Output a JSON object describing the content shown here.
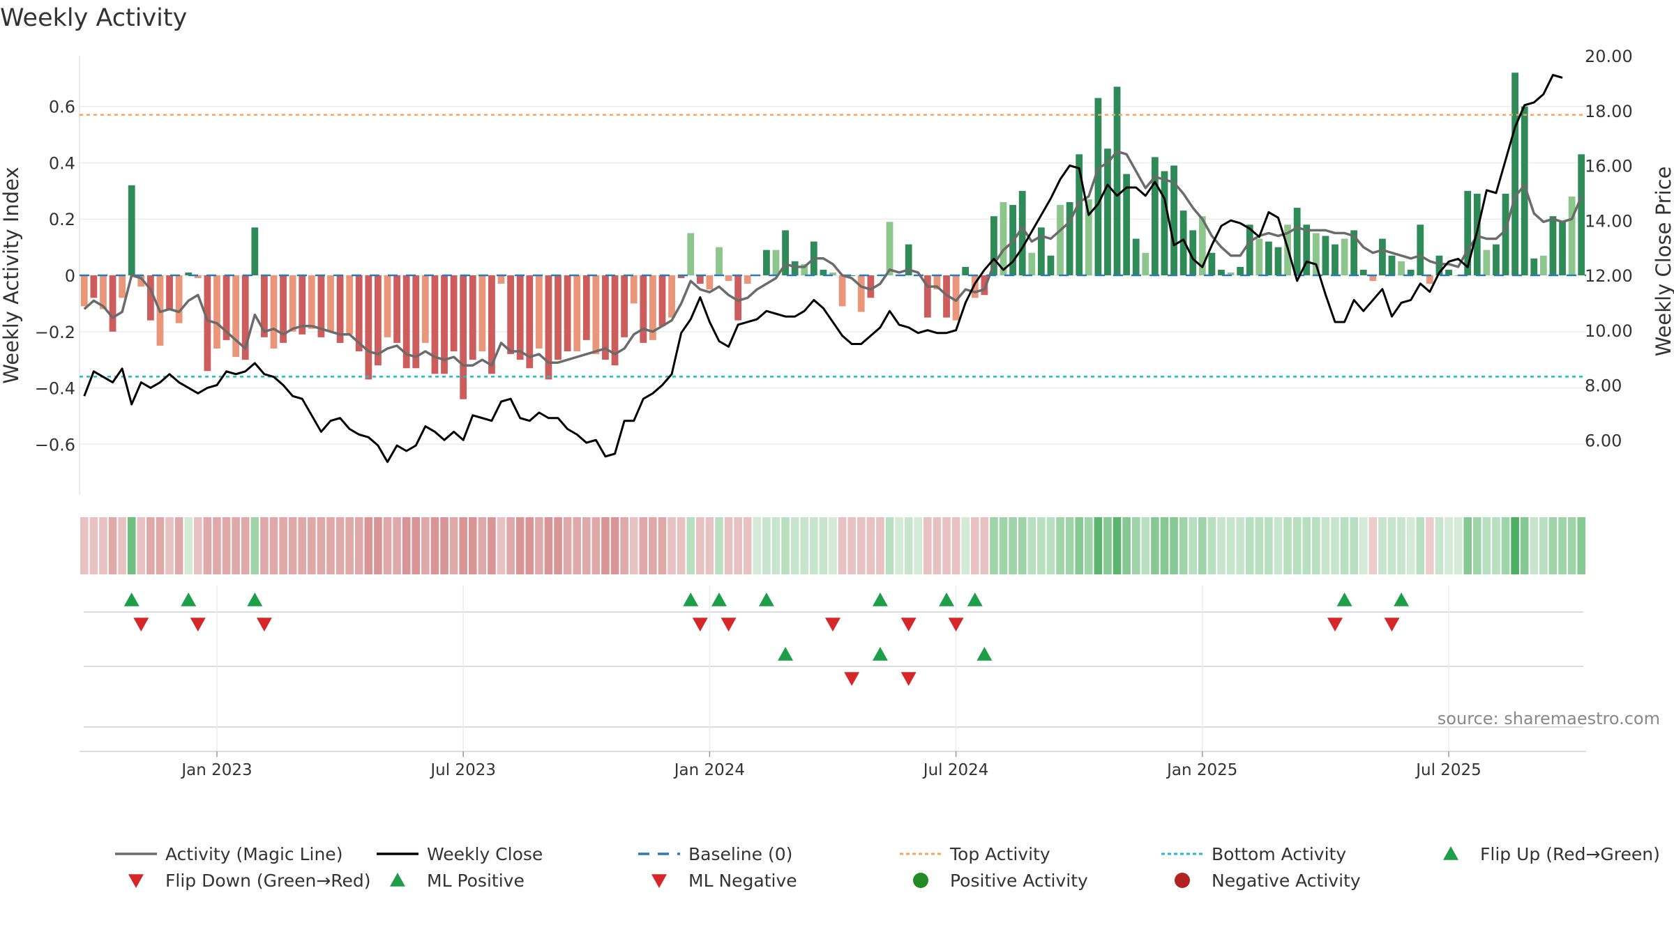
{
  "chart_data": {
    "type": "bar",
    "title": "Weekly Activity",
    "source": "source: sharemaestro.com",
    "ylabel_left": "Weekly Activity Index",
    "ylabel_right": "Weekly Close Price",
    "ylim_left": [
      -0.78,
      0.78
    ],
    "ylim_right": [
      4.0,
      20.0
    ],
    "yticks_left": [
      {
        "v": 0.6,
        "label": "0.6"
      },
      {
        "v": 0.4,
        "label": "0.4"
      },
      {
        "v": 0.2,
        "label": "0.2"
      },
      {
        "v": 0,
        "label": "0"
      },
      {
        "v": -0.2,
        "label": "−0.2"
      },
      {
        "v": -0.4,
        "label": "−0.4"
      },
      {
        "v": -0.6,
        "label": "−0.6"
      }
    ],
    "yticks_right": [
      {
        "v": 20,
        "label": "20.00"
      },
      {
        "v": 18,
        "label": "18.00"
      },
      {
        "v": 16,
        "label": "16.00"
      },
      {
        "v": 14,
        "label": "14.00"
      },
      {
        "v": 12,
        "label": "12.00"
      },
      {
        "v": 10,
        "label": "10.00"
      },
      {
        "v": 8,
        "label": "8.00"
      },
      {
        "v": 6,
        "label": "6.00"
      }
    ],
    "x_ticks": [
      {
        "week": 14.5,
        "label": "Jan 2023"
      },
      {
        "week": 40.5,
        "label": "Jul 2023"
      },
      {
        "week": 66.5,
        "label": "Jan 2024"
      },
      {
        "week": 92.5,
        "label": "Jul 2024"
      },
      {
        "week": 118.5,
        "label": "Jan 2025"
      },
      {
        "week": 144.5,
        "label": "Jul 2025"
      }
    ],
    "top_activity": 0.57,
    "bottom_activity": -0.36,
    "activity": [
      -0.11,
      -0.08,
      -0.12,
      -0.2,
      -0.08,
      0.32,
      -0.04,
      -0.16,
      -0.25,
      -0.12,
      -0.17,
      0.01,
      -0.01,
      -0.34,
      -0.26,
      -0.23,
      -0.29,
      -0.3,
      0.17,
      -0.22,
      -0.26,
      -0.24,
      -0.2,
      -0.21,
      -0.19,
      -0.22,
      -0.2,
      -0.24,
      -0.21,
      -0.27,
      -0.37,
      -0.32,
      -0.22,
      -0.24,
      -0.33,
      -0.33,
      -0.24,
      -0.35,
      -0.35,
      -0.27,
      -0.44,
      -0.3,
      -0.27,
      -0.35,
      -0.03,
      -0.28,
      -0.3,
      -0.33,
      -0.26,
      -0.37,
      -0.3,
      -0.27,
      -0.27,
      -0.23,
      -0.28,
      -0.3,
      -0.32,
      -0.22,
      -0.1,
      -0.24,
      -0.23,
      -0.18,
      -0.15,
      -0.01,
      0.15,
      -0.03,
      -0.05,
      0.1,
      -0.02,
      -0.16,
      -0.03,
      0.0,
      0.09,
      0.09,
      0.16,
      0.05,
      0.04,
      0.12,
      0.02,
      0.01,
      -0.11,
      0.0,
      -0.13,
      -0.08,
      0.0,
      0.19,
      0.0,
      0.11,
      0.0,
      -0.15,
      -0.05,
      -0.15,
      -0.16,
      0.03,
      -0.08,
      -0.07,
      0.21,
      0.26,
      0.25,
      0.3,
      0.08,
      0.17,
      0.07,
      0.25,
      0.26,
      0.43,
      0.27,
      0.63,
      0.45,
      0.67,
      0.36,
      0.13,
      0.08,
      0.42,
      0.37,
      0.39,
      0.23,
      0.16,
      0.21,
      0.08,
      0.02,
      0.01,
      0.03,
      0.18,
      0.13,
      0.12,
      0.1,
      0.18,
      0.24,
      0.18,
      0.15,
      0.14,
      0.11,
      0.13,
      0.16,
      0.02,
      -0.02,
      0.13,
      0.07,
      0.05,
      0.02,
      0.18,
      -0.03,
      0.07,
      0.02,
      0.0,
      0.3,
      0.29,
      0.09,
      0.11,
      0.29,
      0.72,
      0.6,
      0.06,
      0.07,
      0.21,
      0.19,
      0.28,
      0.43
    ],
    "magic_line": [
      -0.12,
      -0.09,
      -0.11,
      -0.15,
      -0.13,
      0.0,
      -0.01,
      -0.05,
      -0.13,
      -0.12,
      -0.13,
      -0.09,
      -0.07,
      -0.16,
      -0.17,
      -0.2,
      -0.23,
      -0.26,
      -0.14,
      -0.2,
      -0.19,
      -0.21,
      -0.19,
      -0.18,
      -0.18,
      -0.19,
      -0.2,
      -0.21,
      -0.21,
      -0.24,
      -0.27,
      -0.28,
      -0.26,
      -0.25,
      -0.28,
      -0.29,
      -0.27,
      -0.29,
      -0.3,
      -0.29,
      -0.32,
      -0.32,
      -0.3,
      -0.32,
      -0.24,
      -0.27,
      -0.27,
      -0.29,
      -0.28,
      -0.31,
      -0.31,
      -0.3,
      -0.29,
      -0.28,
      -0.27,
      -0.26,
      -0.28,
      -0.26,
      -0.21,
      -0.19,
      -0.2,
      -0.18,
      -0.16,
      -0.1,
      -0.02,
      -0.05,
      -0.06,
      -0.04,
      -0.07,
      -0.09,
      -0.08,
      -0.05,
      -0.03,
      -0.01,
      0.04,
      0.03,
      0.03,
      0.06,
      0.06,
      0.04,
      0.0,
      -0.01,
      -0.04,
      -0.05,
      -0.03,
      0.02,
      0.01,
      0.02,
      0.01,
      -0.04,
      -0.04,
      -0.07,
      -0.09,
      -0.05,
      -0.06,
      -0.05,
      0.04,
      0.09,
      0.12,
      0.17,
      0.12,
      0.14,
      0.13,
      0.16,
      0.19,
      0.26,
      0.28,
      0.38,
      0.4,
      0.44,
      0.43,
      0.37,
      0.31,
      0.35,
      0.34,
      0.33,
      0.29,
      0.24,
      0.2,
      0.14,
      0.1,
      0.07,
      0.07,
      0.12,
      0.14,
      0.15,
      0.14,
      0.15,
      0.17,
      0.16,
      0.16,
      0.16,
      0.15,
      0.15,
      0.14,
      0.1,
      0.08,
      0.09,
      0.08,
      0.07,
      0.06,
      0.07,
      0.05,
      0.04,
      0.04,
      0.03,
      0.09,
      0.14,
      0.13,
      0.13,
      0.16,
      0.28,
      0.32,
      0.22,
      0.19,
      0.2,
      0.19,
      0.2,
      0.28
    ],
    "weekly_close": [
      7.6,
      8.5,
      8.3,
      8.1,
      8.6,
      7.3,
      8.1,
      7.9,
      8.1,
      8.4,
      8.1,
      7.9,
      7.7,
      7.9,
      8.0,
      8.5,
      8.4,
      8.5,
      8.8,
      8.4,
      8.3,
      8.0,
      7.6,
      7.5,
      6.9,
      6.3,
      6.7,
      6.8,
      6.4,
      6.2,
      6.1,
      5.8,
      5.2,
      5.8,
      5.6,
      5.8,
      6.5,
      6.3,
      6.0,
      6.3,
      6.0,
      6.9,
      6.8,
      6.7,
      7.4,
      7.5,
      6.8,
      6.7,
      7.0,
      6.8,
      6.8,
      6.4,
      6.2,
      5.9,
      6.0,
      5.4,
      5.5,
      6.7,
      6.7,
      7.5,
      7.7,
      8.0,
      8.4,
      9.9,
      10.4,
      11.2,
      10.3,
      9.6,
      9.4,
      10.2,
      10.3,
      10.4,
      10.7,
      10.6,
      10.5,
      10.5,
      10.7,
      11.1,
      10.8,
      10.3,
      9.8,
      9.5,
      9.5,
      9.8,
      10.1,
      10.7,
      10.2,
      10.1,
      9.9,
      10.0,
      9.9,
      9.9,
      10.0,
      11.0,
      11.7,
      12.2,
      12.6,
      12.2,
      12.5,
      13.0,
      13.6,
      14.2,
      14.8,
      15.5,
      16.0,
      15.9,
      14.2,
      14.6,
      15.3,
      14.9,
      15.2,
      15.2,
      14.9,
      15.4,
      14.8,
      13.1,
      13.3,
      12.6,
      12.3,
      13.1,
      13.8,
      14.0,
      13.9,
      13.7,
      13.4,
      14.3,
      14.1,
      13.0,
      11.8,
      12.5,
      12.4,
      11.3,
      10.3,
      10.3,
      11.1,
      10.7,
      11.1,
      11.5,
      10.5,
      11.0,
      11.1,
      11.7,
      11.4,
      12.1,
      12.5,
      12.6,
      12.3,
      13.6,
      15.1,
      15.0,
      16.2,
      17.4,
      18.2,
      18.3,
      18.6,
      19.3,
      19.2
    ],
    "heat_row_colors": [
      "#e8c2c2",
      "#e8c2c2",
      "#e8c2c2",
      "#e0a9a9",
      "#e8c2c2",
      "#6fbf7f",
      "#e8c2c2",
      "#e0a9a9",
      "#e0a9a9",
      "#e8c2c2",
      "#e0a9a9",
      "#d2ead6",
      "#e8c2c2",
      "#e0a9a9",
      "#e0a9a9",
      "#e0a9a9",
      "#e0a9a9",
      "#e0a9a9",
      "#9fd3a8",
      "#e0a9a9",
      "#e0a9a9",
      "#e0a9a9",
      "#e0a9a9",
      "#e0a9a9",
      "#e0a9a9",
      "#e0a9a9",
      "#e0a9a9",
      "#e0a9a9",
      "#e0a9a9",
      "#e0a9a9",
      "#d99595",
      "#d99595",
      "#e0a9a9",
      "#e0a9a9",
      "#d99595",
      "#d99595",
      "#e0a9a9",
      "#d99595",
      "#d99595",
      "#e0a9a9",
      "#d99595",
      "#d99595",
      "#e0a9a9",
      "#d99595",
      "#e8c2c2",
      "#e0a9a9",
      "#d99595",
      "#d99595",
      "#e0a9a9",
      "#d99595",
      "#d99595",
      "#e0a9a9",
      "#e0a9a9",
      "#e0a9a9",
      "#e0a9a9",
      "#d99595",
      "#d99595",
      "#e0a9a9",
      "#e8c2c2",
      "#e0a9a9",
      "#e0a9a9",
      "#e0a9a9",
      "#e8c2c2",
      "#e8c2c2",
      "#b8dfbf",
      "#e8c2c2",
      "#e8c2c2",
      "#b8dfbf",
      "#e8c2c2",
      "#e8c2c2",
      "#e8c2c2",
      "#d2ead6",
      "#c6e5cc",
      "#c6e5cc",
      "#b8dfbf",
      "#c6e5cc",
      "#c6e5cc",
      "#c6e5cc",
      "#c6e5cc",
      "#d2ead6",
      "#e8c2c2",
      "#e8c2c2",
      "#e8c2c2",
      "#e8c2c2",
      "#e8c2c2",
      "#b8dfbf",
      "#d2ead6",
      "#c6e5cc",
      "#d2ead6",
      "#e8c2c2",
      "#e8c2c2",
      "#e8c2c2",
      "#e8c2c2",
      "#d2ead6",
      "#e8c2c2",
      "#e8c2c2",
      "#9fd3a8",
      "#9fd3a8",
      "#9fd3a8",
      "#9fd3a8",
      "#b8dfbf",
      "#b8dfbf",
      "#b8dfbf",
      "#9fd3a8",
      "#9fd3a8",
      "#86c893",
      "#9fd3a8",
      "#5cb56e",
      "#86c893",
      "#5cb56e",
      "#86c893",
      "#9fd3a8",
      "#b8dfbf",
      "#86c893",
      "#86c893",
      "#86c893",
      "#9fd3a8",
      "#b8dfbf",
      "#9fd3a8",
      "#b8dfbf",
      "#c6e5cc",
      "#c6e5cc",
      "#c6e5cc",
      "#b8dfbf",
      "#b8dfbf",
      "#b8dfbf",
      "#c6e5cc",
      "#b8dfbf",
      "#b8dfbf",
      "#b8dfbf",
      "#b8dfbf",
      "#c6e5cc",
      "#c6e5cc",
      "#b8dfbf",
      "#b8dfbf",
      "#d2ead6",
      "#eccccc",
      "#c6e5cc",
      "#c6e5cc",
      "#c6e5cc",
      "#d2ead6",
      "#b8dfbf",
      "#eccccc",
      "#c6e5cc",
      "#d2ead6",
      "#d2ead6",
      "#86c893",
      "#9fd3a8",
      "#b8dfbf",
      "#b8dfbf",
      "#9fd3a8",
      "#4caf62",
      "#86c893",
      "#c6e5cc",
      "#b8dfbf",
      "#9fd3a8",
      "#9fd3a8",
      "#9fd3a8",
      "#86c893"
    ],
    "flip_up_weeks": [
      5.5,
      11.5,
      18.5,
      64.5,
      67.5,
      72.5,
      84.5,
      91.5,
      94.5,
      133.5,
      139.5
    ],
    "flip_down_weeks": [
      6.5,
      12.5,
      19.5,
      65.5,
      68.5,
      79.5,
      87.5,
      92.5,
      132.5,
      138.5
    ],
    "ml_positive_weeks": [
      74.5,
      84.5,
      95.5
    ],
    "ml_negative_weeks": [
      81.5,
      87.5
    ],
    "colors": {
      "strong_green": "#2e8b57",
      "light_green": "#8cc68c",
      "strong_red": "#cd5c5c",
      "light_red": "#e9967a",
      "magic_line": "#6b6b6b",
      "weekly_close": "#000000",
      "baseline": "#2a7ab9",
      "top_activity": "#f4a460",
      "bottom_activity": "#17becf",
      "marker_green": "#1f9e4a",
      "marker_red": "#d62728",
      "positive_dot": "#228b22",
      "negative_dot": "#b22222"
    },
    "legend": [
      {
        "label": "Activity (Magic Line)",
        "kind": "line",
        "color": "#6b6b6b"
      },
      {
        "label": "Weekly Close",
        "kind": "line",
        "color": "#000000"
      },
      {
        "label": "Baseline (0)",
        "kind": "dash",
        "color": "#2a7ab9"
      },
      {
        "label": "Top Activity",
        "kind": "dot-line",
        "color": "#f4a460"
      },
      {
        "label": "Bottom Activity",
        "kind": "dot-line",
        "color": "#17becf"
      },
      {
        "label": "Flip Up (Red→Green)",
        "kind": "tri-up",
        "color": "#1f9e4a"
      },
      {
        "label": "Flip Down (Green→Red)",
        "kind": "tri-down",
        "color": "#d62728"
      },
      {
        "label": "ML Positive",
        "kind": "tri-up",
        "color": "#1f9e4a"
      },
      {
        "label": "ML Negative",
        "kind": "tri-down",
        "color": "#d62728"
      },
      {
        "label": "Positive Activity",
        "kind": "circle",
        "color": "#228b22"
      },
      {
        "label": "Negative Activity",
        "kind": "circle",
        "color": "#b22222"
      }
    ]
  }
}
